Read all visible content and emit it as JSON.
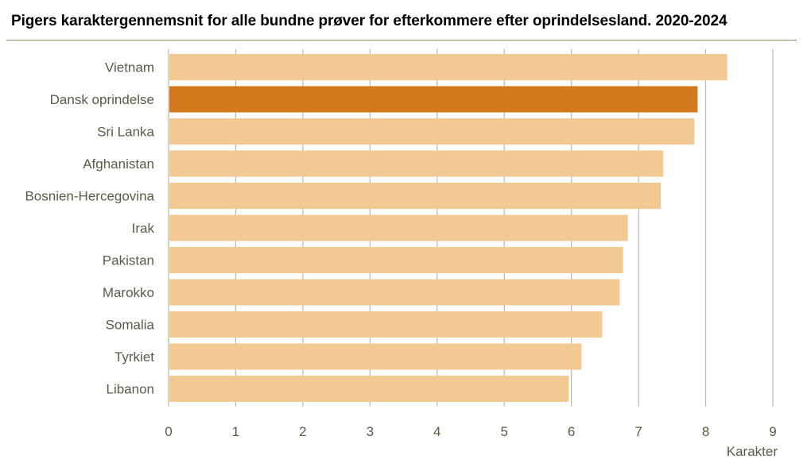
{
  "title": "Pigers karaktergennemsnit for alle bundne prøver for efterkommere efter oprindelsesland. 2020-2024",
  "colors": {
    "bar": "#f2c993",
    "highlight": "#d4781d",
    "grid": "#b9b9a8",
    "text": "#5a5a48",
    "rule": "#8c8c6c"
  },
  "chart_data": {
    "type": "bar",
    "orientation": "horizontal",
    "title": "Pigers karaktergennemsnit for alle bundne prøver for efterkommere efter oprindelsesland. 2020-2024",
    "xlabel": "Karakter",
    "ylabel": "",
    "xlim": [
      0,
      9
    ],
    "xticks": [
      "0",
      "1",
      "2",
      "3",
      "4",
      "5",
      "6",
      "7",
      "8",
      "9"
    ],
    "grid": true,
    "categories": [
      "Vietnam",
      "Dansk oprindelse",
      "Sri Lanka",
      "Afghanistan",
      "Bosnien-Hercegovina",
      "Irak",
      "Pakistan",
      "Marokko",
      "Somalia",
      "Tyrkiet",
      "Libanon"
    ],
    "values": [
      8.32,
      7.88,
      7.83,
      7.37,
      7.33,
      6.84,
      6.77,
      6.72,
      6.46,
      6.15,
      5.96
    ],
    "highlight": "Dansk oprindelse"
  }
}
